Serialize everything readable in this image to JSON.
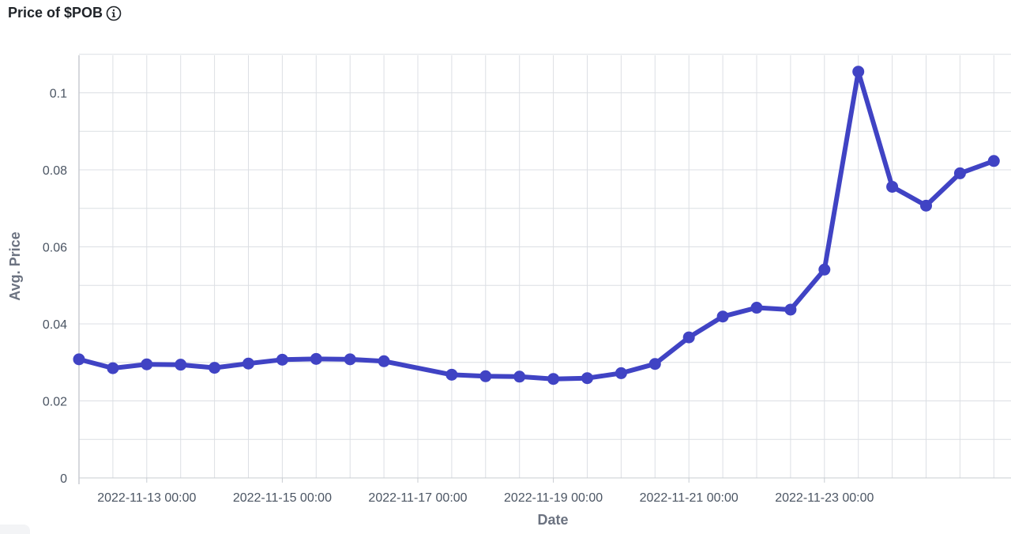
{
  "header": {
    "title": "Price of $POB",
    "info_icon": "info-circle-icon"
  },
  "chart_data": {
    "type": "line",
    "title": "Price of $POB",
    "xlabel": "Date",
    "ylabel": "Avg. Price",
    "ylim": [
      0,
      0.11
    ],
    "yticks": [
      {
        "value": 0,
        "label": "0"
      },
      {
        "value": 0.02,
        "label": "0.02"
      },
      {
        "value": 0.04,
        "label": "0.04"
      },
      {
        "value": 0.06,
        "label": "0.06"
      },
      {
        "value": 0.08,
        "label": "0.08"
      },
      {
        "value": 0.1,
        "label": "0.1"
      }
    ],
    "xlim": [
      "2022-11-12 00:00",
      "2022-11-25 12:00"
    ],
    "xticks": [
      {
        "value": "2022-11-13 00:00",
        "label": "2022-11-13 00:00"
      },
      {
        "value": "2022-11-15 00:00",
        "label": "2022-11-15 00:00"
      },
      {
        "value": "2022-11-17 00:00",
        "label": "2022-11-17 00:00"
      },
      {
        "value": "2022-11-19 00:00",
        "label": "2022-11-19 00:00"
      },
      {
        "value": "2022-11-21 00:00",
        "label": "2022-11-21 00:00"
      },
      {
        "value": "2022-11-23 00:00",
        "label": "2022-11-23 00:00"
      }
    ],
    "grid": true,
    "series": [
      {
        "color": "#4043c4",
        "points": [
          {
            "x": "2022-11-12 00:00",
            "y": 0.0308
          },
          {
            "x": "2022-11-12 12:00",
            "y": 0.0285
          },
          {
            "x": "2022-11-13 00:00",
            "y": 0.0295
          },
          {
            "x": "2022-11-13 12:00",
            "y": 0.0294
          },
          {
            "x": "2022-11-14 00:00",
            "y": 0.0286
          },
          {
            "x": "2022-11-14 12:00",
            "y": 0.0297
          },
          {
            "x": "2022-11-15 00:00",
            "y": 0.0307
          },
          {
            "x": "2022-11-15 12:00",
            "y": 0.0309
          },
          {
            "x": "2022-11-16 00:00",
            "y": 0.0308
          },
          {
            "x": "2022-11-16 12:00",
            "y": 0.0303
          },
          {
            "x": "2022-11-17 12:00",
            "y": 0.0268
          },
          {
            "x": "2022-11-18 00:00",
            "y": 0.0264
          },
          {
            "x": "2022-11-18 12:00",
            "y": 0.0263
          },
          {
            "x": "2022-11-19 00:00",
            "y": 0.0257
          },
          {
            "x": "2022-11-19 12:00",
            "y": 0.0259
          },
          {
            "x": "2022-11-20 00:00",
            "y": 0.0272
          },
          {
            "x": "2022-11-20 12:00",
            "y": 0.0296
          },
          {
            "x": "2022-11-21 00:00",
            "y": 0.0365
          },
          {
            "x": "2022-11-21 12:00",
            "y": 0.0419
          },
          {
            "x": "2022-11-22 00:00",
            "y": 0.0442
          },
          {
            "x": "2022-11-22 12:00",
            "y": 0.0437
          },
          {
            "x": "2022-11-23 00:00",
            "y": 0.0541
          },
          {
            "x": "2022-11-23 12:00",
            "y": 0.1055
          },
          {
            "x": "2022-11-24 00:00",
            "y": 0.0756
          },
          {
            "x": "2022-11-24 12:00",
            "y": 0.0707
          },
          {
            "x": "2022-11-25 00:00",
            "y": 0.0791
          },
          {
            "x": "2022-11-25 12:00",
            "y": 0.0823
          }
        ]
      }
    ]
  },
  "colors": {
    "line": "#4043c4",
    "grid": "#dcdfe4",
    "tick_text": "#4b5563",
    "axis_title": "#6b7280"
  }
}
